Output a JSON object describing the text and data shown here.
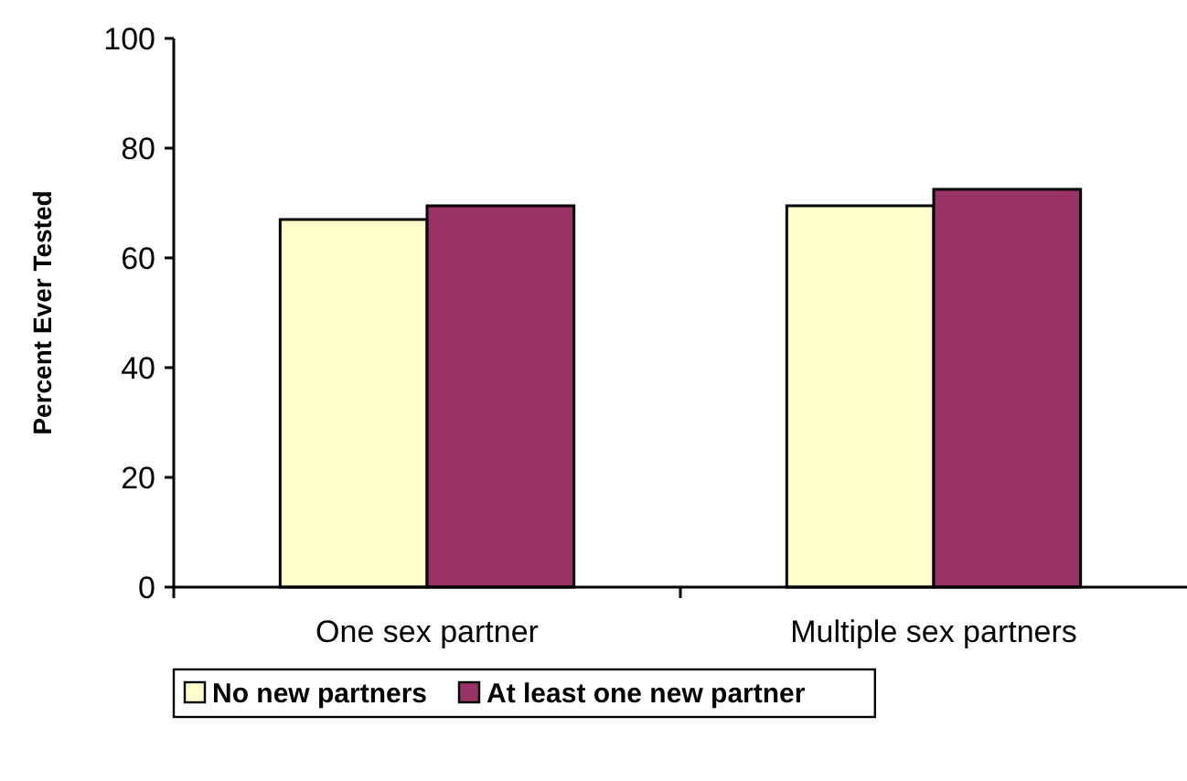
{
  "chart_data": {
    "type": "bar",
    "ylabel": "Percent Ever Tested",
    "categories": [
      "One sex partner",
      "Multiple sex partners"
    ],
    "series": [
      {
        "name": "No new partners",
        "color": "#ffffcc",
        "values": [
          67,
          69.5
        ]
      },
      {
        "name": "At least one new partner",
        "color": "#993366",
        "values": [
          69.5,
          72.5
        ]
      }
    ],
    "ylim": [
      0,
      100
    ],
    "yticks": [
      0,
      20,
      40,
      60,
      80,
      100
    ],
    "grid": false,
    "legend": "bottom"
  }
}
